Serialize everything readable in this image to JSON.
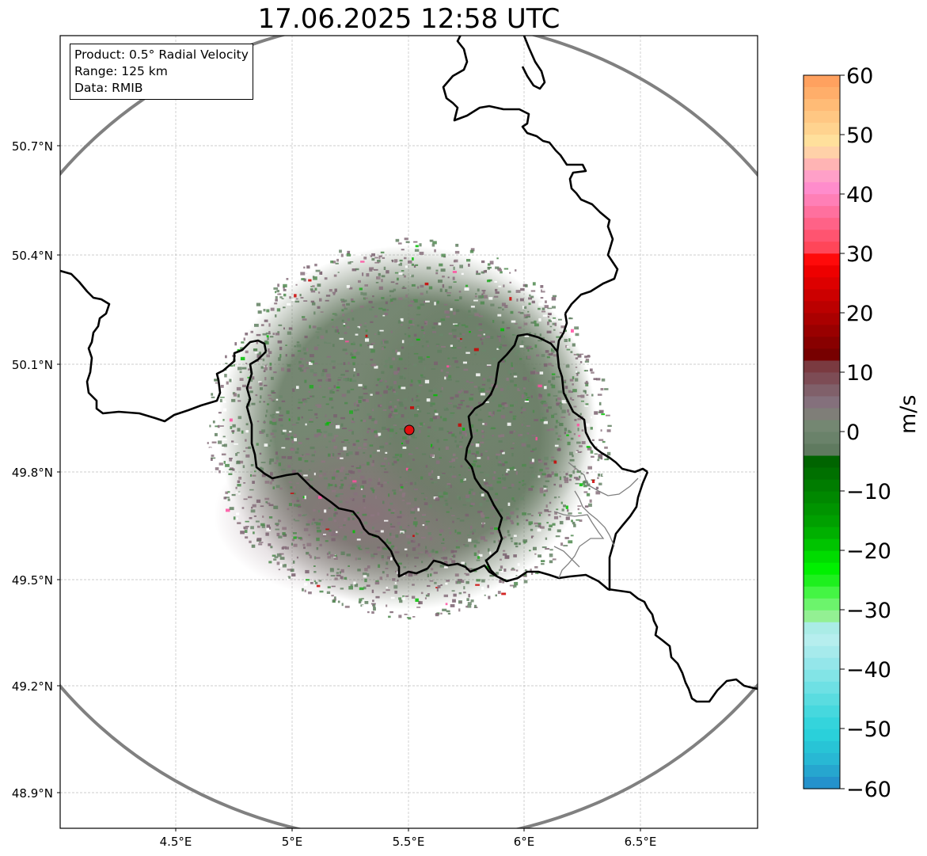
{
  "title": "17.06.2025 12:58 UTC",
  "info_box": {
    "line1": "Product: 0.5° Radial Velocity",
    "line2": "Range: 125 km",
    "line3": "Data: RMIB"
  },
  "axes": {
    "x_ticks": [
      "4.5°E",
      "5°E",
      "5.5°E",
      "6°E",
      "6.5°E"
    ],
    "y_ticks": [
      "50.7°N",
      "50.4°N",
      "50.1°N",
      "49.8°N",
      "49.5°N",
      "49.2°N",
      "48.9°N"
    ]
  },
  "colorbar": {
    "label": "m/s",
    "ticks": [
      "60",
      "50",
      "40",
      "30",
      "20",
      "10",
      "0",
      "−10",
      "−20",
      "−30",
      "−40",
      "−50",
      "−60"
    ],
    "range": [
      -60,
      60
    ]
  },
  "map": {
    "extent_lon": [
      4.0,
      7.0
    ],
    "extent_lat": [
      48.8,
      51.0
    ],
    "radar_site": {
      "lon": 5.505,
      "lat": 49.914
    },
    "range_ring_color": "#808080",
    "radar_marker_color": "#e01010"
  }
}
